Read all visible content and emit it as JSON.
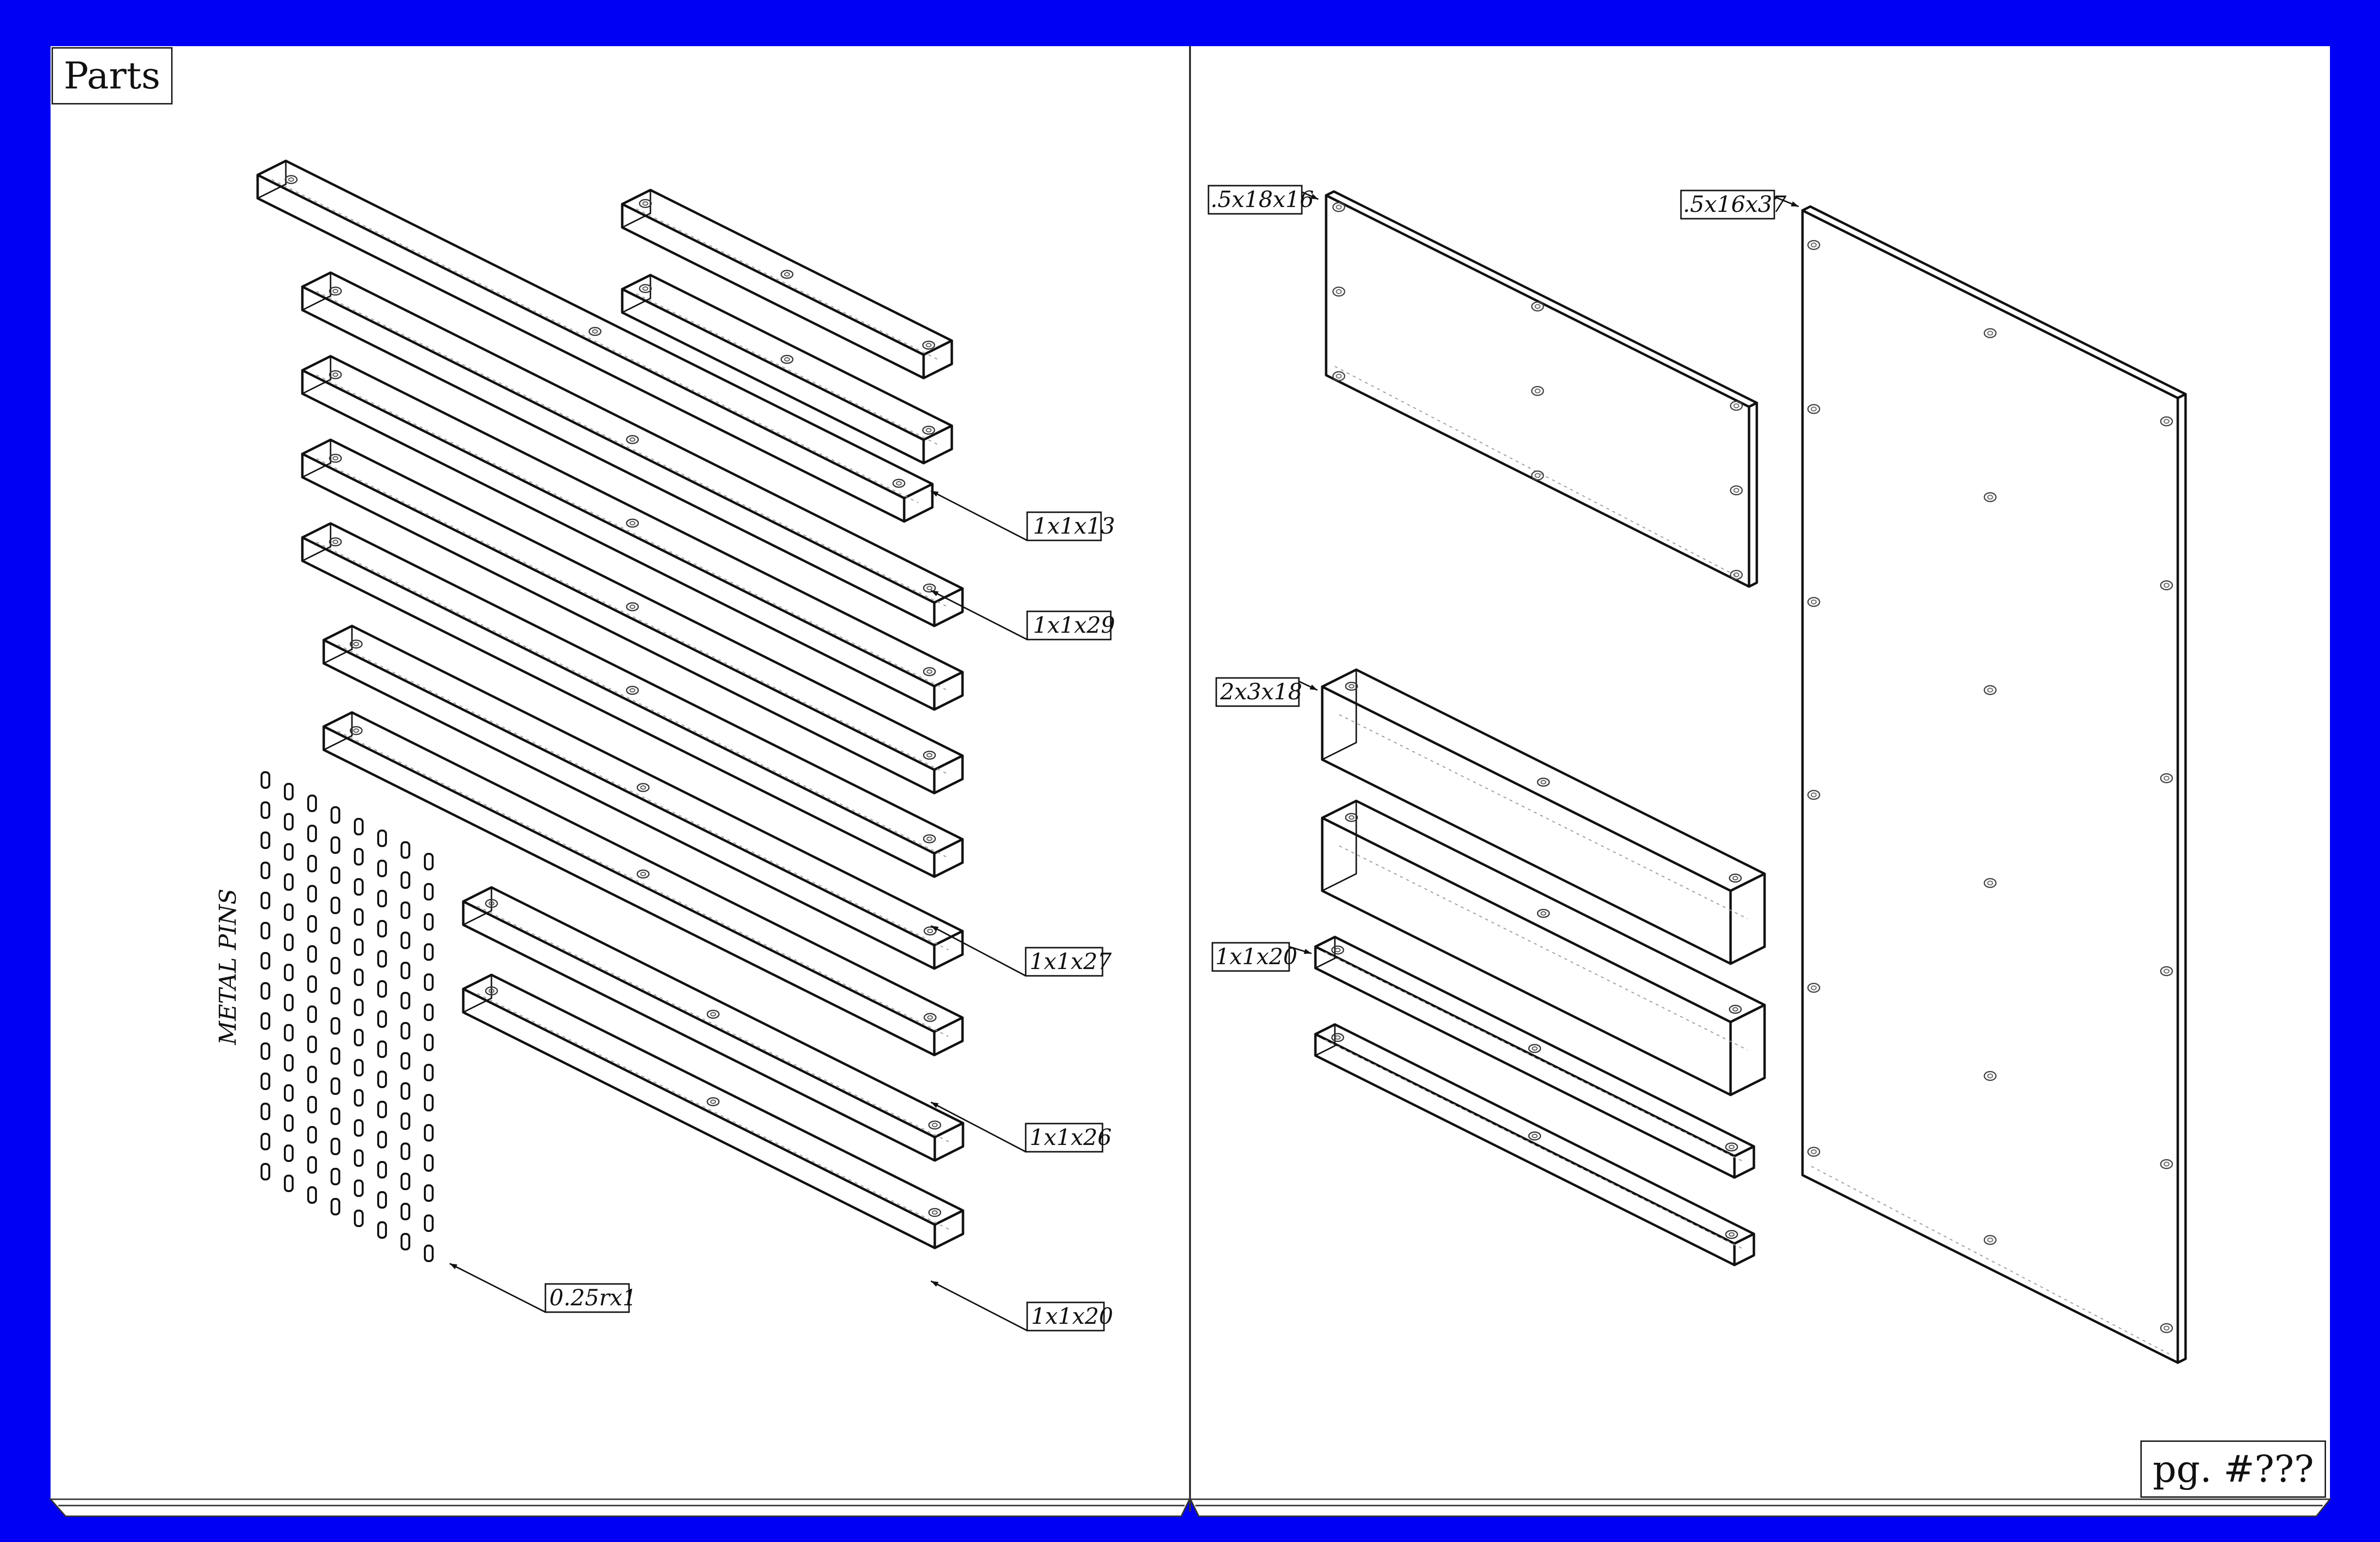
{
  "header": {
    "title": "Parts"
  },
  "footer": {
    "page_label": "pg. #???"
  },
  "left_page": {
    "pins_label": "METAL PINS",
    "labels": [
      {
        "id": "label-1x1x13",
        "text": "1x1x13"
      },
      {
        "id": "label-1x1x29",
        "text": "1x1x29"
      },
      {
        "id": "label-1x1x27",
        "text": "1x1x27"
      },
      {
        "id": "label-1x1x26",
        "text": "1x1x26"
      },
      {
        "id": "label-1x1x20",
        "text": "1x1x20"
      },
      {
        "id": "label-pin",
        "text": "0.25rx1"
      }
    ]
  },
  "right_page": {
    "labels": [
      {
        "id": "label-5x18x16",
        "text": ".5x18x16"
      },
      {
        "id": "label-5x16x37",
        "text": ".5x16x37"
      },
      {
        "id": "label-2x3x18",
        "text": "2x3x18"
      },
      {
        "id": "label-1x1x20-right",
        "text": "1x1x20"
      }
    ]
  },
  "colors": {
    "frame": "#0000f5",
    "paper": "#ffffff",
    "ink": "#111111"
  }
}
